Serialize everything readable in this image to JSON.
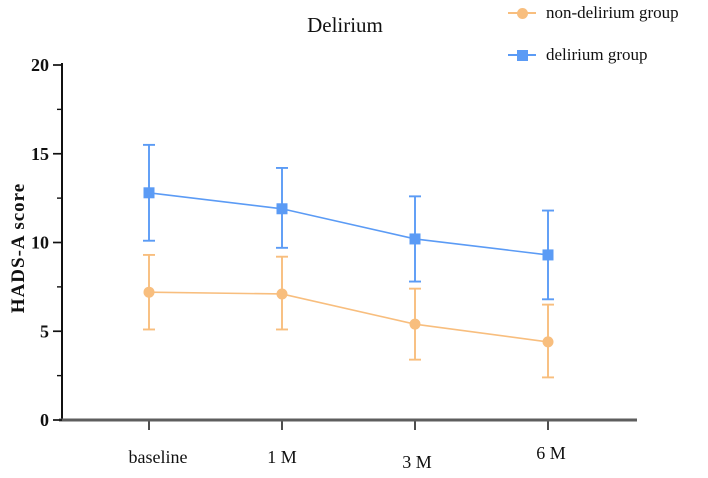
{
  "figure": {
    "title": "Delirium",
    "ylabel": "HADS-A score"
  },
  "legend": {
    "position": "top-right",
    "items": [
      {
        "label": "non-delirium group",
        "marker": "circle",
        "color": "#F8BE7E"
      },
      {
        "label": "delirium group",
        "marker": "square",
        "color": "#5B9BF5"
      }
    ]
  },
  "colors": {
    "non_delirium": "#F8BE7E",
    "delirium": "#5B9BF5",
    "y_axis": "#111111",
    "x_axis": "#5E5E5E",
    "background": "#FFFFFF"
  },
  "chart_data": {
    "type": "line",
    "title": "Delirium",
    "xlabel": "",
    "ylabel": "HADS-A score",
    "categories": [
      "baseline",
      "1 M",
      "3 M",
      "6 M"
    ],
    "ylim": [
      0,
      20
    ],
    "yticks": [
      0,
      5,
      10,
      15,
      20
    ],
    "minor_yticks": [
      2.5,
      7.5,
      12.5,
      17.5
    ],
    "grid": false,
    "legend_position": "top-right",
    "error_bars": "sd, absolute upper/lower values",
    "series": [
      {
        "name": "non-delirium group",
        "marker": "circle",
        "color": "#F8BE7E",
        "values": [
          7.2,
          7.1,
          5.4,
          4.4
        ],
        "err_upper": [
          9.3,
          9.2,
          7.4,
          6.5
        ],
        "err_lower": [
          5.1,
          5.1,
          3.4,
          2.4
        ]
      },
      {
        "name": "delirium group",
        "marker": "square",
        "color": "#5B9BF5",
        "values": [
          12.8,
          11.9,
          10.2,
          9.3
        ],
        "err_upper": [
          15.5,
          14.2,
          12.6,
          11.8
        ],
        "err_lower": [
          10.1,
          9.7,
          7.8,
          6.8
        ]
      }
    ]
  }
}
